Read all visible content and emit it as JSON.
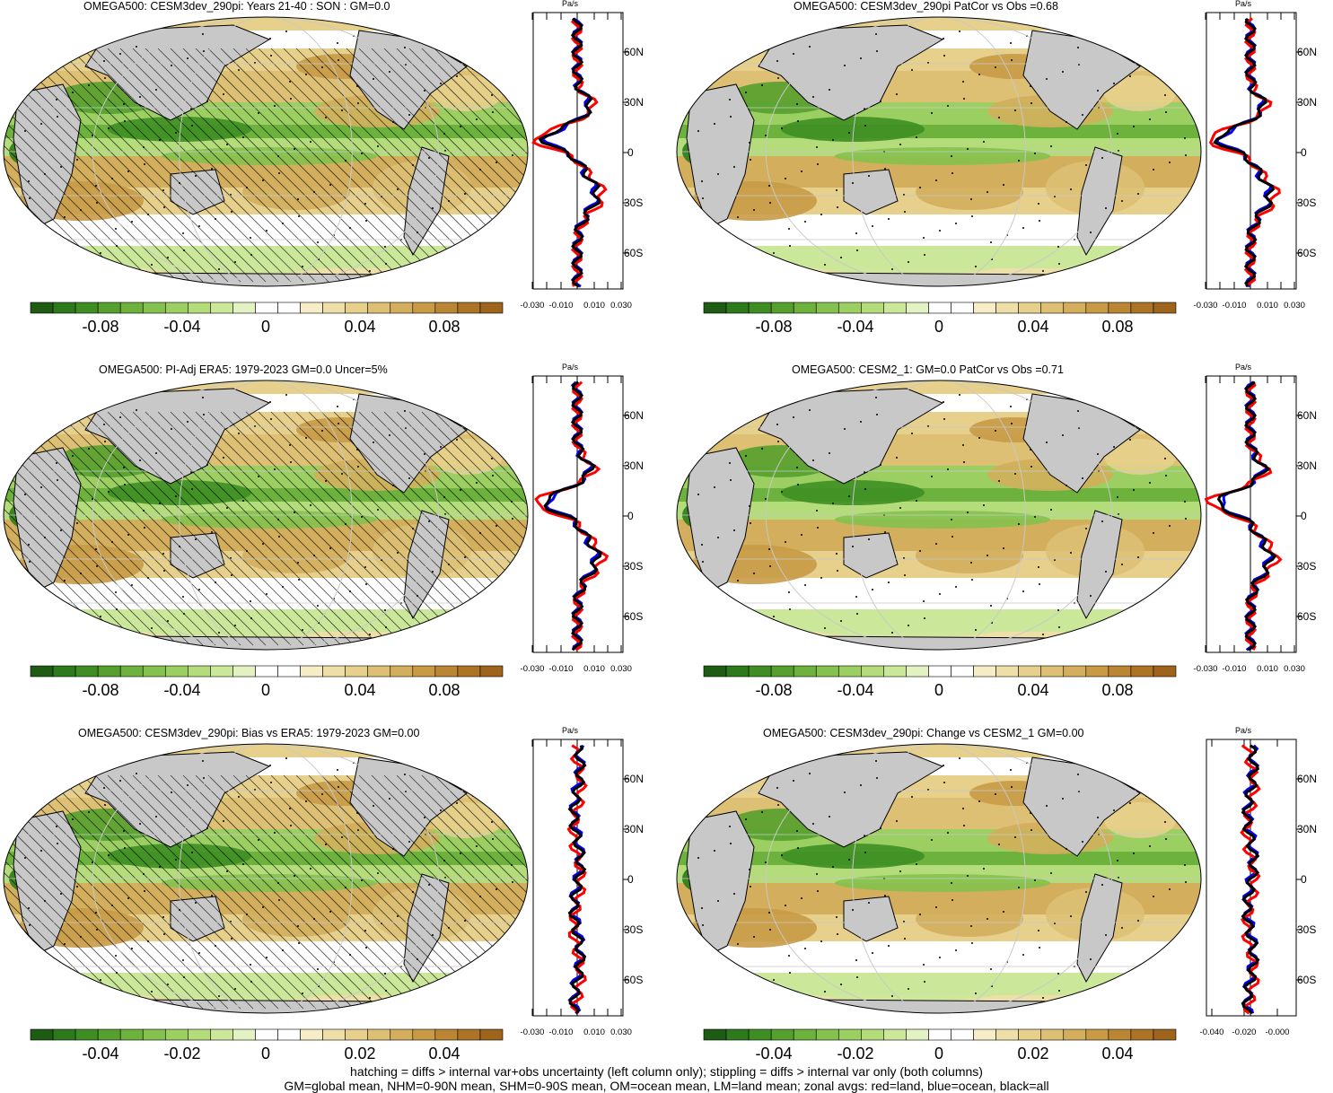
{
  "colors": {
    "land": "#c8c8c8",
    "neg": [
      "#1e5c14",
      "#2d7a1c",
      "#3f8e24",
      "#55a02e",
      "#6cb23c",
      "#85c14e",
      "#9ccf62",
      "#b4dc7a",
      "#cbe89a",
      "#e2f2c2"
    ],
    "zero": "#ffffff",
    "pos": [
      "#f6ecc6",
      "#eedfa8",
      "#e6d08c",
      "#ddc074",
      "#d3ae5c",
      "#c89a46",
      "#bb8634",
      "#ad7426",
      "#9e641c"
    ],
    "zonal_land": "#ff0000",
    "zonal_ocean": "#0000ff",
    "zonal_all": "#000000"
  },
  "panels": [
    {
      "title": "OMEGA500: CESM3dev_290pi: Years 21-40 : SON : GM=0.0",
      "hatched": true,
      "zonal_units": "Pa/s",
      "zonal_ticks": [
        "-0.030",
        "-0.010",
        "0.010",
        "0.030"
      ],
      "lat_labels": [
        "60N",
        "30N",
        "0",
        "30S",
        "60S"
      ],
      "cbar_labels": [
        "-0.08",
        "-0.04",
        "0",
        "0.04",
        "0.08"
      ]
    },
    {
      "title": "OMEGA500: CESM3dev_290pi PatCor vs Obs =0.68",
      "hatched": false,
      "zonal_units": "Pa/s",
      "zonal_ticks": [
        "-0.030",
        "-0.010",
        "0.010",
        "0.030"
      ],
      "lat_labels": [
        "60N",
        "30N",
        "0",
        "30S",
        "60S"
      ],
      "cbar_labels": [
        "-0.08",
        "-0.04",
        "0",
        "0.04",
        "0.08"
      ]
    },
    {
      "title": "OMEGA500: PI-Adj ERA5: 1979-2023 GM=0.0 Uncer=5%",
      "hatched": true,
      "zonal_units": "Pa/s",
      "zonal_ticks": [
        "-0.030",
        "-0.010",
        "0.010",
        "0.030"
      ],
      "lat_labels": [
        "60N",
        "30N",
        "0",
        "30S",
        "60S"
      ],
      "cbar_labels": [
        "-0.08",
        "-0.04",
        "0",
        "0.04",
        "0.08"
      ]
    },
    {
      "title": "OMEGA500: CESM2_1: GM=0.0 PatCor vs Obs =0.71",
      "hatched": false,
      "zonal_units": "Pa/s",
      "zonal_ticks": [
        "-0.030",
        "-0.010",
        "0.010",
        "0.030"
      ],
      "lat_labels": [
        "60N",
        "30N",
        "0",
        "30S",
        "60S"
      ],
      "cbar_labels": [
        "-0.08",
        "-0.04",
        "0",
        "0.04",
        "0.08"
      ]
    },
    {
      "title": "OMEGA500: CESM3dev_290pi: Bias vs ERA5: 1979-2023  GM=0.00",
      "hatched": true,
      "zonal_units": "Pa/s",
      "zonal_ticks": [
        "-0.030",
        "-0.010",
        "0.010",
        "0.030"
      ],
      "lat_labels": [
        "60N",
        "30N",
        "0",
        "30S",
        "60S"
      ],
      "cbar_labels": [
        "-0.04",
        "-0.02",
        "0",
        "0.02",
        "0.04"
      ]
    },
    {
      "title": "OMEGA500: CESM3dev_290pi: Change vs CESM2_1 GM=0.00",
      "hatched": false,
      "zonal_units": "Pa/s",
      "zonal_ticks": [
        "-0.040",
        "-0.020",
        "-0.000"
      ],
      "lat_labels": [
        "60N",
        "30N",
        "0",
        "30S",
        "60S"
      ],
      "cbar_labels": [
        "-0.04",
        "-0.02",
        "0",
        "0.02",
        "0.04"
      ]
    }
  ],
  "footer": {
    "line1": "hatching = diffs > internal var+obs uncertainty (left column only); stippling = diffs > internal var only (both columns)",
    "line2": "GM=global mean, NHM=0-90N mean, SHM=0-90S mean, OM=ocean mean, LM=land mean; zonal avgs: red=land, blue=ocean, black=all"
  },
  "chart_data": [
    {
      "type": "heatmap",
      "title": "OMEGA500: CESM3dev_290pi: Years 21-40 : SON : GM=0.0",
      "colorbar_ticks": [
        -0.08,
        -0.04,
        0,
        0.04,
        0.08
      ],
      "zonal": {
        "units": "Pa/s",
        "xticks": [
          -0.03,
          -0.01,
          0.01,
          0.03
        ],
        "ylabels": [
          "60N",
          "30N",
          "0",
          "30S",
          "60S"
        ]
      }
    },
    {
      "type": "heatmap",
      "title": "OMEGA500: CESM3dev_290pi PatCor vs Obs =0.68",
      "colorbar_ticks": [
        -0.08,
        -0.04,
        0,
        0.04,
        0.08
      ],
      "zonal": {
        "units": "Pa/s",
        "xticks": [
          -0.03,
          -0.01,
          0.01,
          0.03
        ],
        "ylabels": [
          "60N",
          "30N",
          "0",
          "30S",
          "60S"
        ]
      }
    },
    {
      "type": "heatmap",
      "title": "OMEGA500: PI-Adj ERA5: 1979-2023 GM=0.0 Uncer=5%",
      "colorbar_ticks": [
        -0.08,
        -0.04,
        0,
        0.04,
        0.08
      ],
      "zonal": {
        "units": "Pa/s",
        "xticks": [
          -0.03,
          -0.01,
          0.01,
          0.03
        ],
        "ylabels": [
          "60N",
          "30N",
          "0",
          "30S",
          "60S"
        ]
      }
    },
    {
      "type": "heatmap",
      "title": "OMEGA500: CESM2_1: GM=0.0 PatCor vs Obs =0.71",
      "colorbar_ticks": [
        -0.08,
        -0.04,
        0,
        0.04,
        0.08
      ],
      "zonal": {
        "units": "Pa/s",
        "xticks": [
          -0.03,
          -0.01,
          0.01,
          0.03
        ],
        "ylabels": [
          "60N",
          "30N",
          "0",
          "30S",
          "60S"
        ]
      }
    },
    {
      "type": "heatmap",
      "title": "OMEGA500: CESM3dev_290pi: Bias vs ERA5: 1979-2023  GM=0.00",
      "colorbar_ticks": [
        -0.04,
        -0.02,
        0,
        0.02,
        0.04
      ],
      "zonal": {
        "units": "Pa/s",
        "xticks": [
          -0.03,
          -0.01,
          0.01,
          0.03
        ],
        "ylabels": [
          "60N",
          "30N",
          "0",
          "30S",
          "60S"
        ]
      }
    },
    {
      "type": "heatmap",
      "title": "OMEGA500: CESM3dev_290pi: Change vs CESM2_1 GM=0.00",
      "colorbar_ticks": [
        -0.04,
        -0.02,
        0,
        0.02,
        0.04
      ],
      "zonal": {
        "units": "Pa/s",
        "xticks": [
          -0.04,
          -0.02,
          0.0
        ],
        "ylabels": [
          "60N",
          "30N",
          "0",
          "30S",
          "60S"
        ]
      }
    }
  ]
}
